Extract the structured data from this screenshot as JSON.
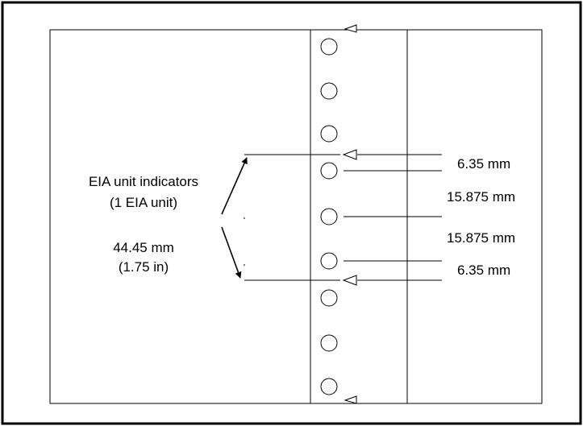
{
  "diagram": {
    "left_labels": {
      "eia_line1": "EIA unit indicators",
      "eia_line2": "(1 EIA unit)",
      "height_mm": "44.45 mm",
      "height_in": "(1.75 in)"
    },
    "dimensions": [
      {
        "label": "6.35 mm"
      },
      {
        "label": "15.875 mm"
      },
      {
        "label": "15.875 mm"
      },
      {
        "label": "6.35 mm"
      }
    ]
  }
}
